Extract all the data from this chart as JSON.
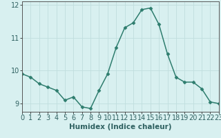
{
  "x": [
    0,
    1,
    2,
    3,
    4,
    5,
    6,
    7,
    8,
    9,
    10,
    11,
    12,
    13,
    14,
    15,
    16,
    17,
    18,
    19,
    20,
    21,
    22,
    23
  ],
  "y": [
    9.9,
    9.8,
    9.6,
    9.5,
    9.4,
    9.1,
    9.2,
    8.9,
    8.85,
    9.4,
    9.9,
    10.7,
    11.3,
    11.45,
    11.85,
    11.9,
    11.4,
    10.5,
    9.8,
    9.65,
    9.65,
    9.45,
    9.05,
    9.0
  ],
  "line_color": "#2e7d6e",
  "marker": "D",
  "marker_size": 2.5,
  "bg_color": "#d8f0f0",
  "grid_color": "#c0dede",
  "grid_color_major": "#aacece",
  "xlabel": "Humidex (Indice chaleur)",
  "xlim": [
    0,
    23
  ],
  "ylim": [
    8.75,
    12.1
  ],
  "yticks": [
    9,
    10,
    11,
    12
  ],
  "xticks": [
    0,
    1,
    2,
    3,
    4,
    5,
    6,
    7,
    8,
    9,
    10,
    11,
    12,
    13,
    14,
    15,
    16,
    17,
    18,
    19,
    20,
    21,
    22,
    23
  ],
  "xlabel_fontsize": 7.5,
  "tick_fontsize": 7,
  "line_width": 1.1
}
